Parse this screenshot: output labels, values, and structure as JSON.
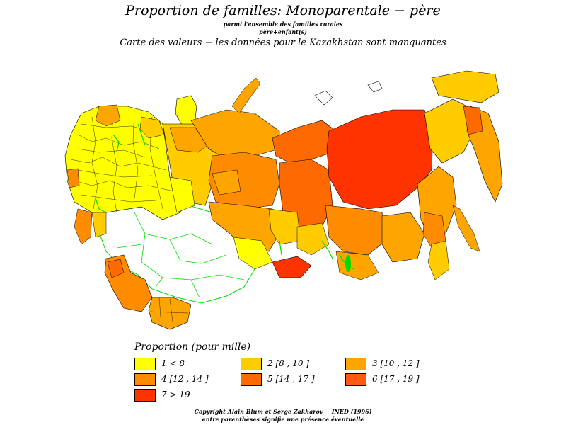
{
  "header": {
    "title": "Proportion de familles: Monoparentale − père",
    "subtitle_1": "parmi l'ensemble des familles rurales",
    "subtitle_2": "père+enfant(s)",
    "subtitle_3": "Carte des valeurs − les données pour le Kazakhstan sont manquantes"
  },
  "colors": {
    "c1": "#ffff00",
    "c2": "#ffcc00",
    "c3": "#ffa500",
    "c4": "#ff8c00",
    "c5": "#ff6a00",
    "c6": "#ff5a14",
    "c7": "#ff3300",
    "missing": "#ffffff",
    "border_green": "#00dd00"
  },
  "legend": {
    "title": "Proportion (pour mille)",
    "items": [
      {
        "label": "1  <  8",
        "color": "#ffff00"
      },
      {
        "label": "2  [8  ,  10  ]",
        "color": "#ffcc00"
      },
      {
        "label": "3  [10  ,  12  ]",
        "color": "#ffa500"
      },
      {
        "label": "4  [12  ,  14  ]",
        "color": "#ff8c00"
      },
      {
        "label": "5  [14  ,  17  ]",
        "color": "#ff6a00"
      },
      {
        "label": "6  [17  ,  19  ]",
        "color": "#ff5a14"
      },
      {
        "label": "7  >  19",
        "color": "#ff3300"
      }
    ]
  },
  "footer": {
    "copyright": "Copyright Alain Blum et Serge Zakharov − INED (1996)",
    "note": "entre parenthèses signifie une présence éventuelle"
  }
}
